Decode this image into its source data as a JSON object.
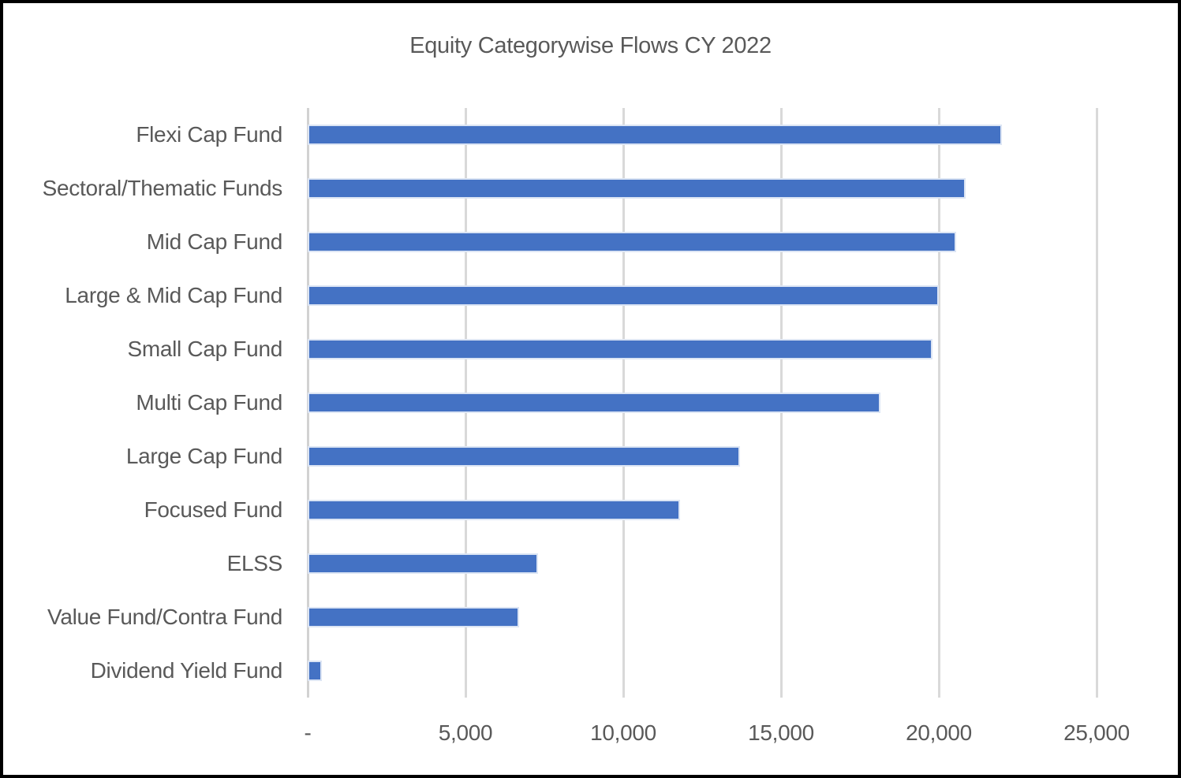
{
  "chart_data": {
    "type": "bar",
    "orientation": "horizontal",
    "title": "Equity Categorywise Flows CY 2022",
    "categories": [
      "Flexi Cap Fund",
      "Sectoral/Thematic Funds",
      "Mid Cap Fund",
      "Large & Mid Cap Fund",
      "Small Cap Fund",
      "Multi Cap Fund",
      "Large Cap Fund",
      "Focused Fund",
      "ELSS",
      "Value Fund/Contra Fund",
      "Dividend Yield Fund"
    ],
    "values": [
      22000,
      20850,
      20550,
      20000,
      19800,
      18150,
      13700,
      11800,
      7300,
      6700,
      450
    ],
    "xlabel": "",
    "ylabel": "",
    "xlim": [
      0,
      25000
    ],
    "x_ticks": [
      {
        "value": 0,
        "label": "-"
      },
      {
        "value": 5000,
        "label": "5,000"
      },
      {
        "value": 10000,
        "label": "10,000"
      },
      {
        "value": 15000,
        "label": "15,000"
      },
      {
        "value": 20000,
        "label": "20,000"
      },
      {
        "value": 25000,
        "label": "25,000"
      }
    ],
    "grid": "vertical",
    "legend": "none",
    "colors": {
      "bar_fill": "#4472C4",
      "bar_border": "#DCE5F4",
      "gridline": "#D9D9D9",
      "axis_line": "#D2D2D2",
      "text": "#595959",
      "frame": "#000000",
      "background": "#FFFFFF"
    }
  }
}
